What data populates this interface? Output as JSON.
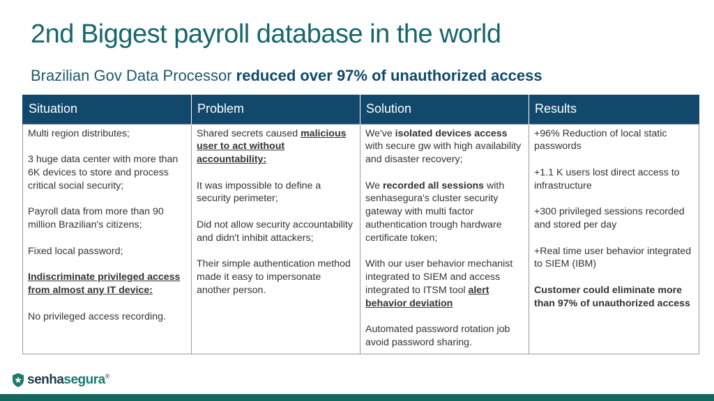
{
  "slide": {
    "title": "2nd Biggest payroll database in the world",
    "subtitle_plain": "Brazilian Gov Data Processor ",
    "subtitle_bold": "reduced over 97% of unauthorized access"
  },
  "table": {
    "headers": [
      "Situation",
      "Problem",
      "Solution",
      "Results"
    ],
    "situation": {
      "p1": "Multi region distributes;",
      "p2": "3 huge data center with more than 6K devices to store and process critical social security;",
      "p3": "Payroll data from more than 90 million Brazilian's citizens;",
      "p4": "Fixed local password;",
      "p5": "Indiscriminate privileged access from almost any IT device:",
      "p6": "No privileged access recording."
    },
    "problem": {
      "p1_a": "Shared secrets caused ",
      "p1_b": "malicious user to act without accountability:",
      "p2": "It was impossible to define a security perimeter;",
      "p3": "Did not allow security accountability and didn't inhibit attackers;",
      "p4": "Their simple authentication method made it easy to impersonate another person."
    },
    "solution": {
      "p1_a": "We've ",
      "p1_b": "isolated devices access",
      "p1_c": " with secure gw with high availability and disaster recovery;",
      "p2_a": "We ",
      "p2_b": "recorded all sessions",
      "p2_c": " with senhasegura's cluster security gateway with multi factor authentication trough hardware certificate token;",
      "p3_a": "With our user behavior mechanist integrated to SIEM and access integrated to ITSM tool ",
      "p3_b": "alert behavior deviation",
      "p4": "Automated password rotation job avoid password sharing."
    },
    "results": {
      "p1": "+96% Reduction of local static passwords",
      "p2": "+1.1 K users lost direct access to infrastructure",
      "p3": "+300 privileged sessions recorded and stored per day",
      "p4": "+Real time user behavior integrated to SIEM (IBM)",
      "p5": "Customer could eliminate more than 97% of unauthorized access"
    }
  },
  "logo": {
    "part1": "senha",
    "part2": "segura",
    "mark": "®",
    "icon": "shield-icon",
    "brand_color": "#1a7a6e"
  }
}
